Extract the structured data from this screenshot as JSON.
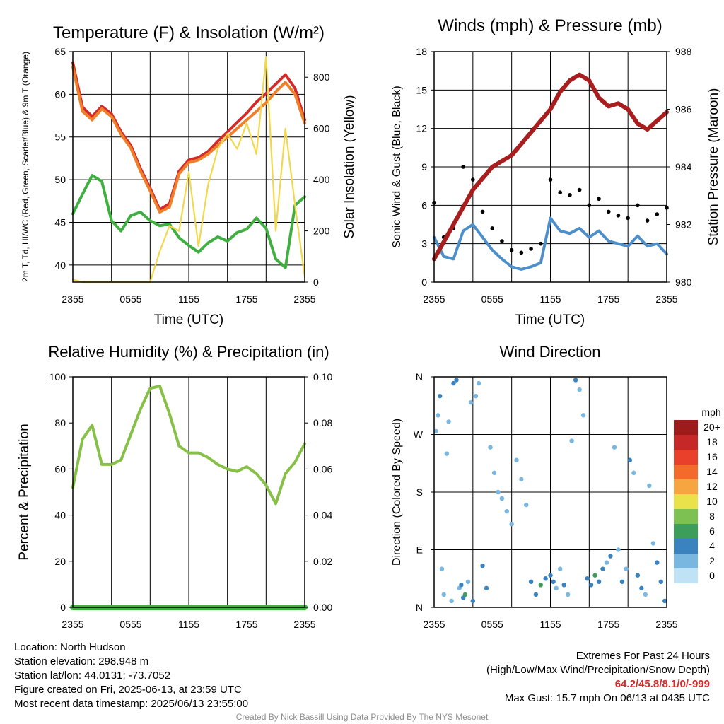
{
  "chart_data": [
    {
      "id": "temp",
      "type": "line",
      "title": "Temperature (F) & Insolation (W/m²)",
      "xlabel": "Time (UTC)",
      "ylabel": "2m T, Td, HI/WC (Red, Green, Scarlet/Blue) & 9m T (Orange)",
      "y2label": "Solar Insolation (Yellow)",
      "xticks": [
        "2355",
        "0555",
        "1155",
        "1755",
        "2355"
      ],
      "yticks": [
        "40",
        "45",
        "50",
        "55",
        "60",
        "65"
      ],
      "y2ticks": [
        "0",
        "200",
        "400",
        "600",
        "800"
      ],
      "ylim": [
        38,
        65
      ],
      "y2lim": [
        0,
        900
      ],
      "grid": true,
      "series": [
        {
          "color": "#d42a2a",
          "axis": "left",
          "x": [
            0,
            1,
            2,
            3,
            4,
            5,
            6,
            7,
            8,
            9,
            10,
            11,
            12,
            13,
            14,
            15,
            16,
            17,
            18,
            19,
            20,
            21,
            22,
            23,
            24
          ],
          "values": [
            63.7,
            58.5,
            57.4,
            58.6,
            57.7,
            55.6,
            54.0,
            51.3,
            49.0,
            46.5,
            47.2,
            51.0,
            52.3,
            52.6,
            53.3,
            54.5,
            55.6,
            56.7,
            57.8,
            59.1,
            60.1,
            61.2,
            62.3,
            60.7,
            57.0
          ]
        },
        {
          "color": "#f07f2a",
          "axis": "left",
          "x": [
            0,
            1,
            2,
            3,
            4,
            5,
            6,
            7,
            8,
            9,
            10,
            11,
            12,
            13,
            14,
            15,
            16,
            17,
            18,
            19,
            20,
            21,
            22,
            23,
            24
          ],
          "values": [
            63.2,
            58.0,
            57.0,
            58.3,
            57.4,
            55.3,
            53.7,
            51.0,
            48.7,
            46.2,
            46.8,
            50.7,
            52.0,
            52.3,
            53.0,
            54.0,
            55.0,
            56.0,
            57.0,
            58.0,
            59.0,
            60.3,
            61.4,
            60.0,
            56.6
          ]
        },
        {
          "color": "#3fb03f",
          "axis": "left",
          "x": [
            0,
            1,
            2,
            3,
            4,
            5,
            6,
            7,
            8,
            9,
            10,
            11,
            12,
            13,
            14,
            15,
            16,
            17,
            18,
            19,
            20,
            21,
            22,
            23,
            24
          ],
          "values": [
            46.0,
            48.3,
            50.5,
            49.8,
            45.2,
            44.0,
            45.8,
            46.2,
            45.2,
            44.6,
            44.8,
            43.2,
            42.3,
            41.5,
            42.6,
            43.3,
            42.8,
            43.8,
            44.2,
            45.5,
            44.3,
            40.7,
            39.7,
            47.0,
            48.0
          ]
        },
        {
          "color": "#f2d84d",
          "axis": "right",
          "x": [
            0,
            1,
            2,
            3,
            4,
            5,
            6,
            7,
            8,
            9,
            10,
            11,
            12,
            13,
            14,
            15,
            16,
            17,
            18,
            19,
            20,
            21,
            22,
            23,
            24
          ],
          "values": [
            10,
            0,
            0,
            0,
            0,
            0,
            0,
            0,
            0,
            120,
            220,
            200,
            430,
            140,
            380,
            520,
            580,
            520,
            620,
            500,
            880,
            200,
            600,
            300,
            20
          ]
        }
      ]
    },
    {
      "id": "wind",
      "type": "line",
      "title": "Winds (mph) & Pressure (mb)",
      "xlabel": "Time (UTC)",
      "ylabel": "Sonic Wind & Gust (Blue, Black)",
      "y2label": "Station Pressure (Maroon)",
      "xticks": [
        "2355",
        "0555",
        "1155",
        "1755",
        "2355"
      ],
      "yticks": [
        "0",
        "3",
        "6",
        "9",
        "12",
        "15",
        "18"
      ],
      "y2ticks": [
        "980",
        "982",
        "984",
        "986",
        "988"
      ],
      "ylim": [
        0,
        18
      ],
      "y2lim": [
        980,
        988
      ],
      "grid": true,
      "series": [
        {
          "color": "#4d8fcb",
          "axis": "left",
          "type": "line",
          "x": [
            0,
            1,
            2,
            3,
            4,
            5,
            6,
            7,
            8,
            9,
            10,
            11,
            12,
            13,
            14,
            15,
            16,
            17,
            18,
            19,
            20,
            21,
            22,
            23,
            24
          ],
          "values": [
            3.5,
            2.0,
            1.8,
            4.0,
            4.5,
            3.5,
            2.5,
            1.8,
            1.2,
            1.0,
            1.2,
            1.5,
            5.0,
            4.0,
            3.8,
            4.2,
            3.5,
            4.0,
            3.2,
            3.0,
            2.8,
            3.6,
            2.8,
            3.0,
            2.2
          ]
        },
        {
          "color": "#000000",
          "axis": "left",
          "type": "scatter",
          "x": [
            0,
            1,
            2,
            3,
            4,
            5,
            6,
            7,
            8,
            9,
            10,
            11,
            12,
            13,
            14,
            15,
            16,
            17,
            18,
            19,
            20,
            21,
            22,
            23,
            24
          ],
          "values": [
            6.2,
            3.5,
            4.2,
            9.0,
            8.0,
            5.5,
            4.2,
            3.2,
            2.5,
            2.3,
            2.6,
            3.0,
            8.0,
            7.0,
            6.8,
            7.2,
            6.0,
            6.5,
            5.5,
            5.2,
            5.0,
            6.0,
            4.8,
            5.3,
            5.8
          ]
        },
        {
          "color": "#a81e1e",
          "axis": "right",
          "type": "line",
          "x": [
            0,
            1,
            2,
            3,
            4,
            5,
            6,
            7,
            8,
            9,
            10,
            11,
            12,
            13,
            14,
            15,
            16,
            17,
            18,
            19,
            20,
            21,
            22,
            23,
            24
          ],
          "values": [
            980.8,
            981.4,
            982.0,
            982.6,
            983.2,
            983.6,
            984.0,
            984.2,
            984.4,
            984.8,
            985.2,
            985.6,
            986.0,
            986.6,
            987.0,
            987.2,
            987.0,
            986.4,
            986.1,
            986.2,
            986.0,
            985.5,
            985.3,
            985.6,
            985.9
          ]
        }
      ]
    },
    {
      "id": "rh",
      "type": "line",
      "title": "Relative Humidity (%) & Precipitation (in)",
      "ylabel": "Percent & Precipitation",
      "xticks": [
        "2355",
        "0555",
        "1155",
        "1755",
        "2355"
      ],
      "yticks": [
        "0",
        "20",
        "40",
        "60",
        "80",
        "100"
      ],
      "y2ticks": [
        "0.00",
        "0.02",
        "0.04",
        "0.06",
        "0.08",
        "0.10"
      ],
      "ylim": [
        0,
        100
      ],
      "y2lim": [
        0,
        0.1
      ],
      "grid": true,
      "series": [
        {
          "color": "#86c046",
          "axis": "left",
          "x": [
            0,
            1,
            2,
            3,
            4,
            5,
            6,
            7,
            8,
            9,
            10,
            11,
            12,
            13,
            14,
            15,
            16,
            17,
            18,
            19,
            20,
            21,
            22,
            23,
            24
          ],
          "values": [
            52,
            73,
            79,
            62,
            62,
            64,
            75,
            86,
            95,
            96,
            84,
            70,
            67,
            67,
            65,
            62,
            60,
            59,
            61,
            58,
            53,
            45,
            58,
            63,
            71
          ]
        },
        {
          "color": "#3fb03f",
          "axis": "right",
          "x": [
            0,
            24
          ],
          "values": [
            0.0,
            0.0
          ]
        }
      ]
    },
    {
      "id": "direction",
      "type": "scatter",
      "title": "Wind Direction",
      "ylabel": "Direction (Colored By Speed)",
      "xticks": [
        "2355",
        "0555",
        "1155",
        "1755",
        "2355"
      ],
      "yticks": [
        "N",
        "E",
        "S",
        "W",
        "N"
      ],
      "ylim": [
        0,
        360
      ],
      "grid": true,
      "legend": {
        "title": "mph",
        "position": "right",
        "labels": [
          "20+",
          "18",
          "16",
          "14",
          "12",
          "10",
          "8",
          "6",
          "4",
          "2",
          "0"
        ],
        "colors": [
          "#9e1b1b",
          "#c62828",
          "#e8402a",
          "#f26b2a",
          "#f7a540",
          "#e9e24a",
          "#7cc151",
          "#3d9e5c",
          "#3b83c0",
          "#7ab7e0",
          "#bfe3f5"
        ]
      },
      "x": [
        0.2,
        0.4,
        0.6,
        0.8,
        1.0,
        1.3,
        1.5,
        1.8,
        2.0,
        2.3,
        2.6,
        2.8,
        3.0,
        3.2,
        3.5,
        3.8,
        4.0,
        4.3,
        4.6,
        5.0,
        5.4,
        5.8,
        6.2,
        6.6,
        7.0,
        7.5,
        8.0,
        8.5,
        9.0,
        9.5,
        10.0,
        10.5,
        11.0,
        11.5,
        12.0,
        12.3,
        12.6,
        13.0,
        13.4,
        13.8,
        14.2,
        14.6,
        15.0,
        15.4,
        15.8,
        16.2,
        16.6,
        17.0,
        17.4,
        17.8,
        18.2,
        18.6,
        19.0,
        19.4,
        19.8,
        20.2,
        20.6,
        21.0,
        21.4,
        21.8,
        22.2,
        22.6,
        23.0,
        23.4,
        23.8
      ],
      "values": [
        275,
        300,
        330,
        60,
        20,
        240,
        290,
        10,
        350,
        355,
        30,
        35,
        15,
        20,
        40,
        320,
        10,
        330,
        350,
        65,
        30,
        250,
        210,
        180,
        170,
        150,
        130,
        230,
        200,
        160,
        40,
        20,
        35,
        45,
        50,
        40,
        30,
        60,
        35,
        20,
        260,
        355,
        340,
        300,
        45,
        35,
        50,
        40,
        60,
        70,
        80,
        250,
        90,
        40,
        60,
        230,
        210,
        50,
        30,
        20,
        190,
        100,
        70,
        40,
        10
      ],
      "speeds": [
        1,
        2,
        3,
        2,
        1,
        2,
        1,
        1,
        3,
        4,
        2,
        3,
        4,
        5,
        2,
        1,
        3,
        2,
        1,
        4,
        3,
        1,
        1,
        1,
        2,
        2,
        1,
        1,
        2,
        1,
        3,
        4,
        5,
        3,
        4,
        3,
        2,
        1,
        3,
        2,
        1,
        3,
        2,
        1,
        4,
        3,
        5,
        3,
        4,
        2,
        3,
        2,
        2,
        3,
        1,
        3,
        2,
        3,
        4,
        2,
        1,
        2,
        3,
        4,
        3
      ]
    }
  ],
  "footer": {
    "location": "Location: North Hudson",
    "elevation": "Station elevation: 298.948 m",
    "latlon": "Station lat/lon: 44.0131; -73.7052",
    "created": "Figure created on Fri, 2025-06-13, at 23:59 UTC",
    "recent": "Most recent data timestamp: 2025/06/13 23:55:00",
    "extremes_title": "Extremes For Past 24 Hours",
    "extremes_sub": "(High/Low/Max Wind/Precipitation/Snow Depth)",
    "extremes_values": "64.2/45.8/8.1/0/-999",
    "max_gust": "Max Gust: 15.7 mph On 06/13 at 0435 UTC",
    "credit": "Created By Nick Bassill Using Data Provided By The NYS Mesonet"
  }
}
